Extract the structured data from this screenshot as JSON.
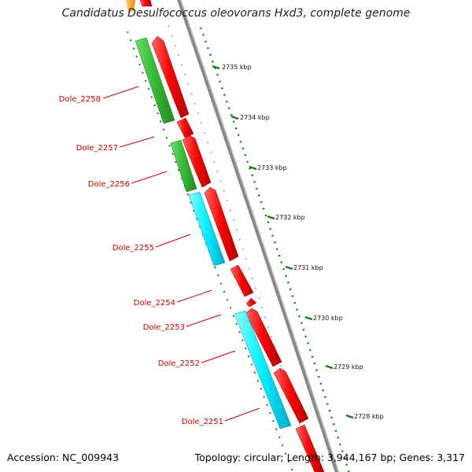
{
  "title": "Candidatus Desulfococcus oleovorans Hxd3, complete genome",
  "footer": {
    "accession": "Accession: NC_009943",
    "summary": "Topology: circular; Length: 3,944,167 bp; Genes: 3,317"
  },
  "ticks": [
    {
      "label": "2735 kbp"
    },
    {
      "label": "2734 kbp"
    },
    {
      "label": "2733 kbp"
    },
    {
      "label": "2732 kbp"
    },
    {
      "label": "2731 kbp"
    },
    {
      "label": "2730 kbp"
    },
    {
      "label": "2729 kbp"
    },
    {
      "label": "2728 kbp"
    }
  ],
  "gene_labels": [
    "Dole_2258",
    "Dole_2257",
    "Dole_2256",
    "Dole_2255",
    "Dole_2254",
    "Dole_2253",
    "Dole_2252",
    "Dole_2251"
  ],
  "colors": {
    "backbone": "#888888",
    "cds": "#ee0000",
    "green_feature": "#33bb33",
    "cyan_feature": "#00e5f0",
    "orange_feature": "#ff9900",
    "ticks": "#1a7a1a",
    "label": "#cc0000"
  }
}
